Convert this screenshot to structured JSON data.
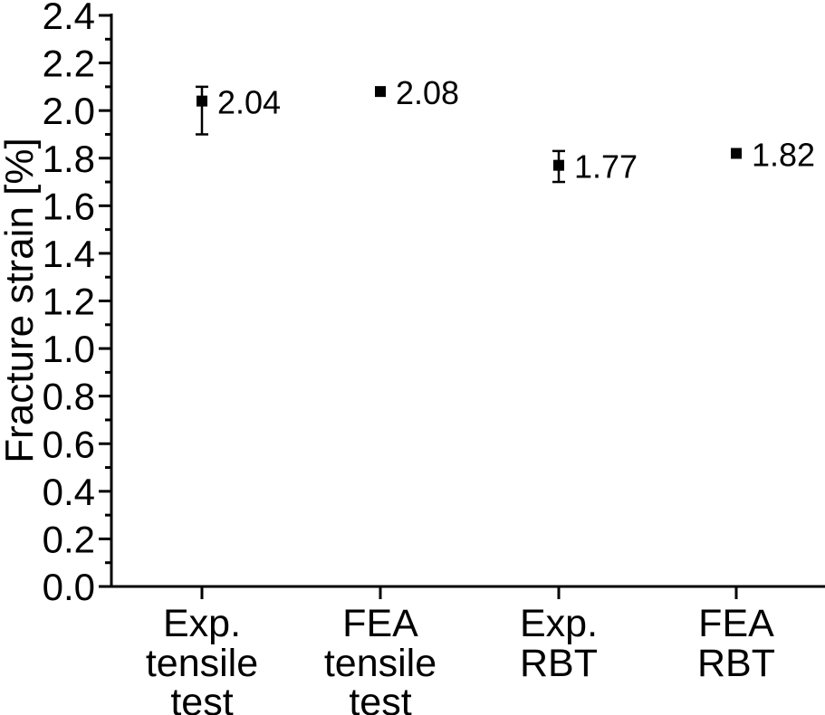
{
  "chart_data": {
    "type": "scatter",
    "title": "",
    "xlabel": "",
    "ylabel": "Fracture strain [%]",
    "ylim": [
      0.0,
      2.4
    ],
    "ytick_step": 0.2,
    "yminor_step": 0.1,
    "ytick_labels": [
      "0.0",
      "0.2",
      "0.4",
      "0.6",
      "0.8",
      "1.0",
      "1.2",
      "1.4",
      "1.6",
      "1.8",
      "2.0",
      "2.2",
      "2.4"
    ],
    "grid": false,
    "legend": null,
    "marker": "filled-square",
    "foreground_color": "#000000",
    "background_color": "#ffffff",
    "categories": [
      {
        "name": "Exp. tensile test",
        "lines": [
          "Exp.",
          "tensile",
          "test"
        ]
      },
      {
        "name": "FEA tensile test",
        "lines": [
          "FEA",
          "tensile",
          "test"
        ]
      },
      {
        "name": "Exp. RBT",
        "lines": [
          "Exp.",
          "RBT"
        ]
      },
      {
        "name": "FEA RBT",
        "lines": [
          "FEA",
          "RBT"
        ]
      }
    ],
    "points": [
      {
        "category": "Exp. tensile test",
        "value": 2.04,
        "value_label": "2.04",
        "error_high": 2.1,
        "error_low": 1.9
      },
      {
        "category": "FEA tensile test",
        "value": 2.08,
        "value_label": "2.08",
        "error_high": null,
        "error_low": null
      },
      {
        "category": "Exp. RBT",
        "value": 1.77,
        "value_label": "1.77",
        "error_high": 1.83,
        "error_low": 1.7
      },
      {
        "category": "FEA RBT",
        "value": 1.82,
        "value_label": "1.82",
        "error_high": null,
        "error_low": null
      }
    ]
  }
}
